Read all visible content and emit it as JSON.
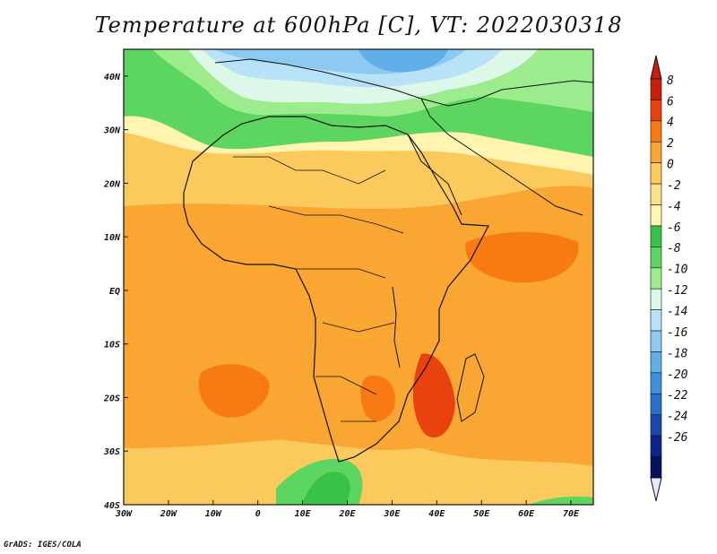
{
  "title": "Temperature at 600hPa [C], VT: 2022030318",
  "credit": "GrADS: IGES/COLA",
  "map": {
    "lon_range": [
      -30,
      75
    ],
    "lat_range": [
      -40,
      45
    ],
    "lon_ticks": [
      "30W",
      "20W",
      "10W",
      "0",
      "10E",
      "20E",
      "30E",
      "40E",
      "50E",
      "60E",
      "70E"
    ],
    "lat_ticks": [
      "40N",
      "30N",
      "20N",
      "10N",
      "EQ",
      "10S",
      "20S",
      "30S",
      "40S"
    ]
  },
  "colorbar": {
    "labels": [
      "8",
      "6",
      "4",
      "2",
      "0",
      "-2",
      "-4",
      "-6",
      "-8",
      "-10",
      "-12",
      "-14",
      "-16",
      "-18",
      "-20",
      "-22",
      "-24",
      "-26"
    ],
    "colors": [
      "#c81e0a",
      "#e8420f",
      "#f87a12",
      "#f9a632",
      "#fcc95d",
      "#fde08a",
      "#fff4b0",
      "#38c24a",
      "#5cd660",
      "#9ceb8c",
      "#ddf7e8",
      "#b8e2f8",
      "#8ccaf2",
      "#62aee8",
      "#3f8fdc",
      "#2a6dcc",
      "#1748b0",
      "#0b238a",
      "#080f5e"
    ],
    "top_arrow_color": "#c81e0a",
    "bottom_arrow_color": "#e8e8ff"
  }
}
